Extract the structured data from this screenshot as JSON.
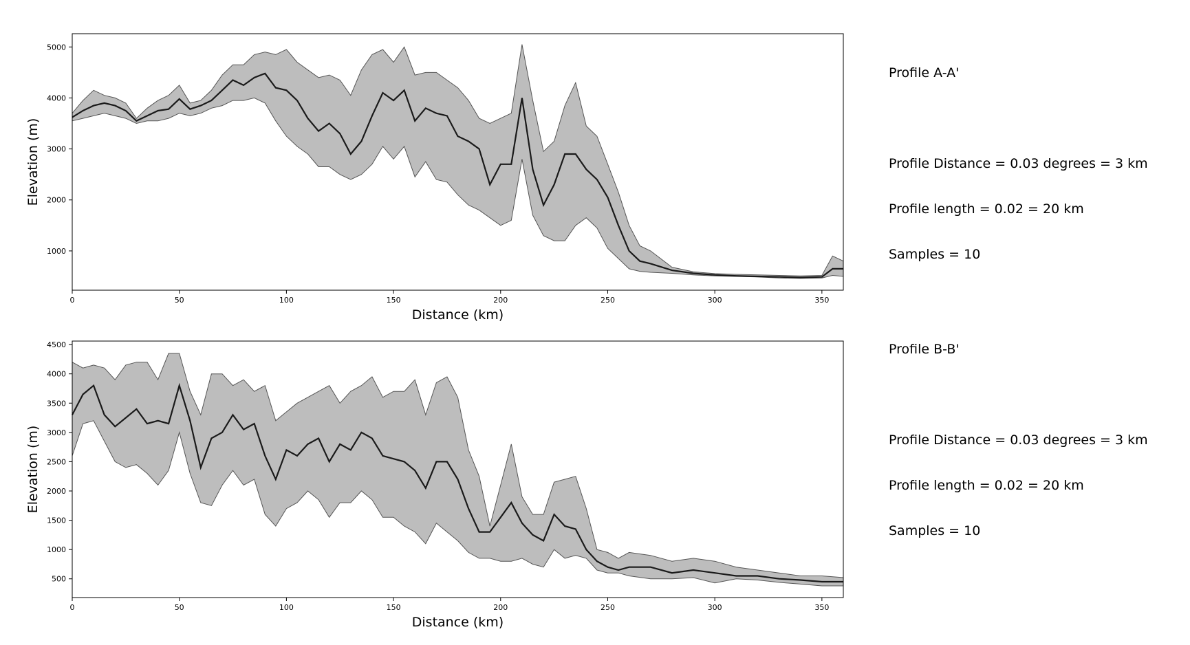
{
  "chart_data": [
    {
      "type": "area",
      "id": "profile-a",
      "title": "",
      "xlabel": "Distance (km)",
      "ylabel": "Elevation (m)",
      "xlim": [
        0,
        360
      ],
      "ylim": [
        230,
        5260
      ],
      "xticks": [
        0,
        50,
        100,
        150,
        200,
        250,
        300,
        350
      ],
      "yticks": [
        1000,
        2000,
        3000,
        4000,
        5000
      ],
      "grid": false,
      "x": [
        0,
        5,
        10,
        15,
        20,
        25,
        30,
        35,
        40,
        45,
        50,
        55,
        60,
        65,
        70,
        75,
        80,
        85,
        90,
        95,
        100,
        105,
        110,
        115,
        120,
        125,
        130,
        135,
        140,
        145,
        150,
        155,
        160,
        165,
        170,
        175,
        180,
        185,
        190,
        195,
        200,
        205,
        210,
        215,
        220,
        225,
        230,
        235,
        240,
        245,
        250,
        255,
        260,
        265,
        270,
        280,
        290,
        300,
        310,
        320,
        330,
        340,
        350,
        355,
        360
      ],
      "series": [
        {
          "name": "",
          "role": "mean",
          "values": [
            3620,
            3750,
            3850,
            3900,
            3850,
            3750,
            3550,
            3650,
            3750,
            3780,
            3980,
            3780,
            3850,
            3950,
            4150,
            4350,
            4250,
            4400,
            4480,
            4200,
            4150,
            3950,
            3600,
            3350,
            3500,
            3300,
            2900,
            3150,
            3650,
            4100,
            3950,
            4150,
            3550,
            3800,
            3700,
            3650,
            3250,
            3150,
            3000,
            2300,
            2700,
            2700,
            4000,
            2600,
            1900,
            2300,
            2900,
            2900,
            2600,
            2400,
            2050,
            1500,
            1000,
            800,
            750,
            620,
            560,
            530,
            510,
            500,
            490,
            480,
            490,
            650,
            650
          ]
        },
        {
          "name": "",
          "role": "max",
          "values": [
            3700,
            3950,
            4150,
            4050,
            4000,
            3900,
            3600,
            3800,
            3950,
            4050,
            4250,
            3900,
            3950,
            4150,
            4450,
            4650,
            4650,
            4850,
            4900,
            4850,
            4950,
            4700,
            4550,
            4400,
            4450,
            4350,
            4050,
            4550,
            4850,
            4950,
            4700,
            5000,
            4450,
            4500,
            4500,
            4350,
            4200,
            3950,
            3600,
            3500,
            3600,
            3700,
            5050,
            3950,
            2950,
            3150,
            3850,
            4300,
            3450,
            3250,
            2700,
            2150,
            1500,
            1100,
            1000,
            680,
            590,
            555,
            540,
            530,
            520,
            510,
            520,
            900,
            800
          ]
        },
        {
          "name": "",
          "role": "min",
          "values": [
            3550,
            3600,
            3650,
            3700,
            3650,
            3600,
            3500,
            3550,
            3550,
            3600,
            3700,
            3650,
            3700,
            3800,
            3850,
            3950,
            3950,
            4000,
            3900,
            3550,
            3250,
            3050,
            2900,
            2650,
            2650,
            2500,
            2400,
            2500,
            2700,
            3050,
            2800,
            3050,
            2450,
            2750,
            2400,
            2350,
            2100,
            1900,
            1800,
            1650,
            1500,
            1600,
            2800,
            1700,
            1300,
            1200,
            1200,
            1500,
            1650,
            1450,
            1050,
            850,
            650,
            600,
            580,
            560,
            530,
            510,
            500,
            490,
            470,
            460,
            470,
            520,
            500
          ]
        }
      ]
    },
    {
      "type": "area",
      "id": "profile-b",
      "title": "",
      "xlabel": "Distance (km)",
      "ylabel": "Elevation (m)",
      "xlim": [
        0,
        360
      ],
      "ylim": [
        180,
        4560
      ],
      "xticks": [
        0,
        50,
        100,
        150,
        200,
        250,
        300,
        350
      ],
      "yticks": [
        500,
        1000,
        1500,
        2000,
        2500,
        3000,
        3500,
        4000,
        4500
      ],
      "grid": false,
      "x": [
        0,
        5,
        10,
        15,
        20,
        25,
        30,
        35,
        40,
        45,
        50,
        55,
        60,
        65,
        70,
        75,
        80,
        85,
        90,
        95,
        100,
        105,
        110,
        115,
        120,
        125,
        130,
        135,
        140,
        145,
        150,
        155,
        160,
        165,
        170,
        175,
        180,
        185,
        190,
        195,
        200,
        205,
        210,
        215,
        220,
        225,
        230,
        235,
        240,
        245,
        250,
        255,
        260,
        270,
        280,
        290,
        300,
        310,
        320,
        330,
        340,
        350,
        360
      ],
      "series": [
        {
          "name": "",
          "role": "mean",
          "values": [
            3300,
            3650,
            3800,
            3300,
            3100,
            3250,
            3400,
            3150,
            3200,
            3150,
            3800,
            3200,
            2400,
            2900,
            3000,
            3300,
            3050,
            3150,
            2600,
            2200,
            2700,
            2600,
            2800,
            2900,
            2500,
            2800,
            2700,
            3000,
            2900,
            2600,
            2550,
            2500,
            2350,
            2050,
            2500,
            2500,
            2200,
            1700,
            1300,
            1300,
            1550,
            1800,
            1450,
            1250,
            1150,
            1600,
            1400,
            1350,
            1000,
            800,
            700,
            650,
            700,
            700,
            600,
            650,
            600,
            550,
            550,
            500,
            480,
            450,
            450
          ]
        },
        {
          "name": "",
          "role": "max",
          "values": [
            4200,
            4100,
            4150,
            4100,
            3900,
            4150,
            4200,
            4200,
            3900,
            4350,
            4350,
            3700,
            3300,
            4000,
            4000,
            3800,
            3900,
            3700,
            3800,
            3200,
            3350,
            3500,
            3600,
            3700,
            3800,
            3500,
            3700,
            3800,
            3950,
            3600,
            3700,
            3700,
            3900,
            3300,
            3850,
            3950,
            3600,
            2700,
            2250,
            1400,
            2100,
            2800,
            1900,
            1600,
            1600,
            2150,
            2200,
            2250,
            1700,
            1000,
            950,
            850,
            950,
            900,
            800,
            850,
            800,
            700,
            650,
            600,
            550,
            550,
            520
          ]
        },
        {
          "name": "",
          "role": "min",
          "values": [
            2600,
            3150,
            3200,
            2850,
            2500,
            2400,
            2450,
            2300,
            2100,
            2350,
            3000,
            2300,
            1800,
            1750,
            2100,
            2350,
            2100,
            2200,
            1600,
            1400,
            1700,
            1800,
            2000,
            1850,
            1550,
            1800,
            1800,
            2000,
            1850,
            1550,
            1550,
            1400,
            1300,
            1100,
            1450,
            1300,
            1150,
            950,
            850,
            850,
            800,
            800,
            850,
            750,
            700,
            1000,
            850,
            900,
            850,
            650,
            600,
            600,
            550,
            500,
            500,
            520,
            430,
            500,
            480,
            440,
            410,
            380,
            380
          ]
        }
      ]
    }
  ],
  "notes": [
    {
      "id": "note-a",
      "title": "Profile A-A'",
      "line1": "Profile Distance = 0.03 degrees = 3 km",
      "line2": "Profile length = 0.02 = 20 km",
      "line3": "Samples = 10"
    },
    {
      "id": "note-b",
      "title": "Profile B-B'",
      "line1": "Profile Distance = 0.03 degrees = 3 km",
      "line2": "Profile length = 0.02 = 20 km",
      "line3": "Samples = 10"
    }
  ]
}
